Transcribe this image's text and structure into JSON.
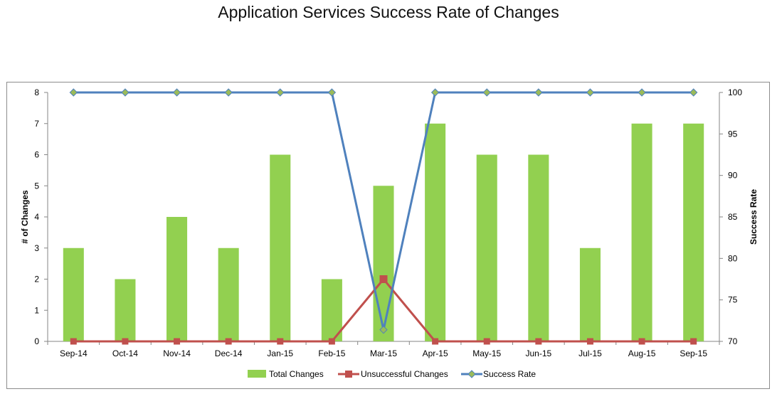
{
  "chart_data": {
    "type": "bar",
    "title": "Application Services Success Rate of Changes",
    "categories": [
      "Sep-14",
      "Oct-14",
      "Nov-14",
      "Dec-14",
      "Jan-15",
      "Feb-15",
      "Mar-15",
      "Apr-15",
      "May-15",
      "Jun-15",
      "Jul-15",
      "Aug-15",
      "Sep-15"
    ],
    "ylabel": "# of Changes",
    "y2label": "Success Rate",
    "ylim": [
      0,
      8
    ],
    "y2lim": [
      70,
      100
    ],
    "yticks": [
      0,
      1,
      2,
      3,
      4,
      5,
      6,
      7,
      8
    ],
    "y2ticks": [
      70,
      75,
      80,
      85,
      90,
      95,
      100
    ],
    "grid": false,
    "legend_position": "bottom",
    "series": [
      {
        "name": "Total Changes",
        "kind": "bar",
        "axis": "left",
        "color": "#92D050",
        "values": [
          3,
          2,
          4,
          3,
          6,
          2,
          5,
          7,
          6,
          6,
          3,
          7,
          7
        ]
      },
      {
        "name": "Unsuccessful Changes",
        "kind": "line",
        "axis": "left",
        "color": "#C0504D",
        "marker": "square",
        "values": [
          0,
          0,
          0,
          0,
          0,
          0,
          2,
          0,
          0,
          0,
          0,
          0,
          0
        ]
      },
      {
        "name": "Success Rate",
        "kind": "line",
        "axis": "right",
        "color": "#4F81BD",
        "marker": "diamond",
        "values": [
          100,
          100,
          100,
          100,
          100,
          100,
          71.4,
          100,
          100,
          100,
          100,
          100,
          100
        ]
      }
    ]
  }
}
